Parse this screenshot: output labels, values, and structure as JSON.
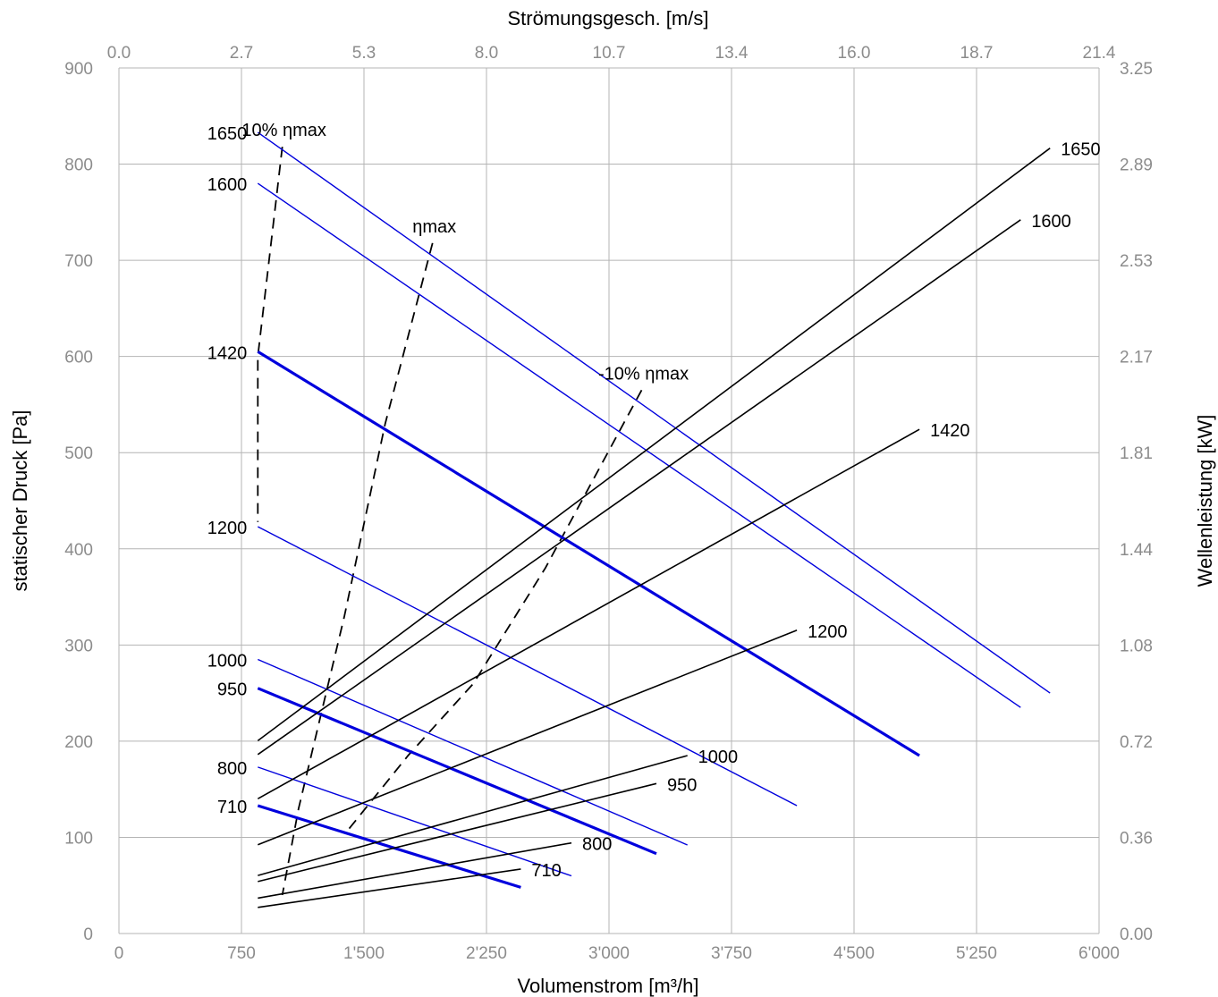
{
  "chart_data": {
    "type": "line",
    "title": "",
    "xlabel": "Volumenstrom [m³/h]",
    "x2label": "Strömungsgesch. [m/s]",
    "ylabel": "statischer Druck [Pa]",
    "y2label": "Wellenleistung [kW]",
    "xlim": [
      0,
      6000
    ],
    "ylim": [
      0,
      900
    ],
    "y2lim": [
      0,
      3.25
    ],
    "x_ticks": [
      "0",
      "750",
      "1'500",
      "2'250",
      "3'000",
      "3'750",
      "4'500",
      "5'250",
      "6'000"
    ],
    "x2_ticks": [
      "0.0",
      "2.7",
      "5.3",
      "8.0",
      "10.7",
      "13.4",
      "16.0",
      "18.7",
      "21.4"
    ],
    "y_ticks": [
      "0",
      "100",
      "200",
      "300",
      "400",
      "500",
      "600",
      "700",
      "800",
      "900"
    ],
    "y2_ticks": [
      "0.00",
      "0.36",
      "0.72",
      "1.08",
      "1.44",
      "1.81",
      "2.17",
      "2.53",
      "2.89",
      "3.25"
    ],
    "grid": true,
    "pressure_curves": [
      {
        "name": "1650",
        "bold": false,
        "points": [
          [
            850,
            833
          ],
          [
            5700,
            250
          ]
        ]
      },
      {
        "name": "1600",
        "bold": false,
        "points": [
          [
            850,
            780
          ],
          [
            5520,
            235
          ]
        ]
      },
      {
        "name": "1420",
        "bold": true,
        "points": [
          [
            850,
            605
          ],
          [
            4900,
            185
          ]
        ]
      },
      {
        "name": "1200",
        "bold": false,
        "points": [
          [
            850,
            423
          ],
          [
            4150,
            133
          ]
        ]
      },
      {
        "name": "1000",
        "bold": false,
        "points": [
          [
            850,
            285
          ],
          [
            3480,
            92
          ]
        ]
      },
      {
        "name": "950",
        "bold": true,
        "points": [
          [
            850,
            255
          ],
          [
            3290,
            83
          ]
        ]
      },
      {
        "name": "800",
        "bold": false,
        "points": [
          [
            850,
            173
          ],
          [
            2770,
            60
          ]
        ]
      },
      {
        "name": "710",
        "bold": true,
        "points": [
          [
            850,
            133
          ],
          [
            2460,
            48
          ]
        ]
      }
    ],
    "power_curves": [
      {
        "name": "1650",
        "points": [
          [
            850,
            0.724
          ],
          [
            5700,
            2.949
          ]
        ]
      },
      {
        "name": "1600",
        "points": [
          [
            850,
            0.672
          ],
          [
            5520,
            2.68
          ]
        ]
      },
      {
        "name": "1420",
        "points": [
          [
            850,
            0.506
          ],
          [
            4900,
            1.893
          ]
        ]
      },
      {
        "name": "1200",
        "points": [
          [
            850,
            0.333
          ],
          [
            4150,
            1.139
          ]
        ]
      },
      {
        "name": "1000",
        "points": [
          [
            850,
            0.218
          ],
          [
            3480,
            0.668
          ]
        ]
      },
      {
        "name": "950",
        "points": [
          [
            850,
            0.195
          ],
          [
            3290,
            0.563
          ]
        ]
      },
      {
        "name": "800",
        "points": [
          [
            850,
            0.133
          ],
          [
            2770,
            0.34
          ]
        ]
      },
      {
        "name": "710",
        "points": [
          [
            850,
            0.098
          ],
          [
            2460,
            0.242
          ]
        ]
      }
    ],
    "efficiency_curves": [
      {
        "name": "10% ηmax",
        "points": [
          [
            1000,
            818
          ],
          [
            850,
            600
          ],
          [
            850,
            428
          ]
        ]
      },
      {
        "name": "ηmax",
        "points": [
          [
            1920,
            718
          ],
          [
            1630,
            530
          ],
          [
            1380,
            330
          ],
          [
            1100,
            130
          ],
          [
            1000,
            40
          ]
        ]
      },
      {
        "name": "-10% ηmax",
        "points": [
          [
            3200,
            565
          ],
          [
            2610,
            380
          ],
          [
            2170,
            260
          ],
          [
            1770,
            185
          ],
          [
            1390,
            105
          ]
        ]
      }
    ],
    "pressure_labels": [
      "1650",
      "1600",
      "1420",
      "1200",
      "1000",
      "950",
      "800",
      "710"
    ],
    "power_labels": [
      "1650",
      "1600",
      "1420",
      "1200",
      "1000",
      "950",
      "800",
      "710"
    ],
    "efficiency_labels": [
      "10% ηmax",
      "ηmax",
      "-10% ηmax"
    ],
    "colors": {
      "pressure": "#0000dd",
      "power": "#000000",
      "efficiency": "#000000",
      "grid": "#b4b4b4",
      "ticks": "#8c8c8c"
    }
  }
}
